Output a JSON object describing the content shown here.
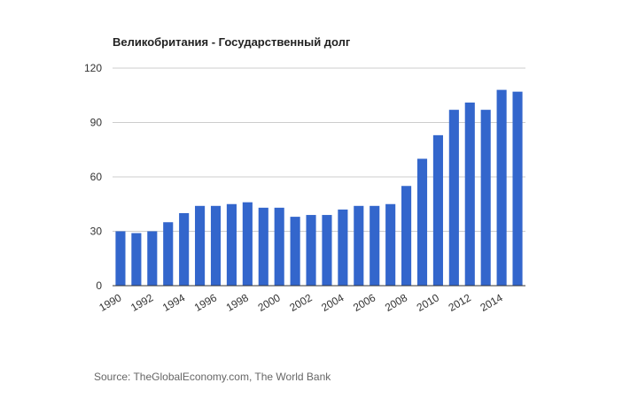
{
  "chart_data": {
    "type": "bar",
    "title": "Великобритания - Государственный долг",
    "source": "Source: TheGlobalEconomy.com, The World Bank",
    "categories": [
      "1990",
      "1991",
      "1992",
      "1993",
      "1994",
      "1995",
      "1996",
      "1997",
      "1998",
      "1999",
      "2000",
      "2001",
      "2002",
      "2003",
      "2004",
      "2005",
      "2006",
      "2007",
      "2008",
      "2009",
      "2010",
      "2011",
      "2012",
      "2013",
      "2014",
      "2015"
    ],
    "values": [
      30,
      29,
      30,
      35,
      40,
      44,
      44,
      45,
      46,
      43,
      43,
      38,
      39,
      39,
      42,
      44,
      44,
      45,
      55,
      70,
      83,
      97,
      101,
      97,
      108,
      107
    ],
    "x_tick_labels": [
      "1990",
      "1992",
      "1994",
      "1996",
      "1998",
      "2000",
      "2002",
      "2004",
      "2006",
      "2008",
      "2010",
      "2012",
      "2014"
    ],
    "y_ticks": [
      0,
      30,
      60,
      90,
      120
    ],
    "ylim": [
      0,
      120
    ],
    "xlabel": "",
    "ylabel": "",
    "grid": true,
    "legend": "none",
    "bar_color": "#3366cc",
    "grid_color": "#cccccc",
    "axis_color": "#333333"
  }
}
